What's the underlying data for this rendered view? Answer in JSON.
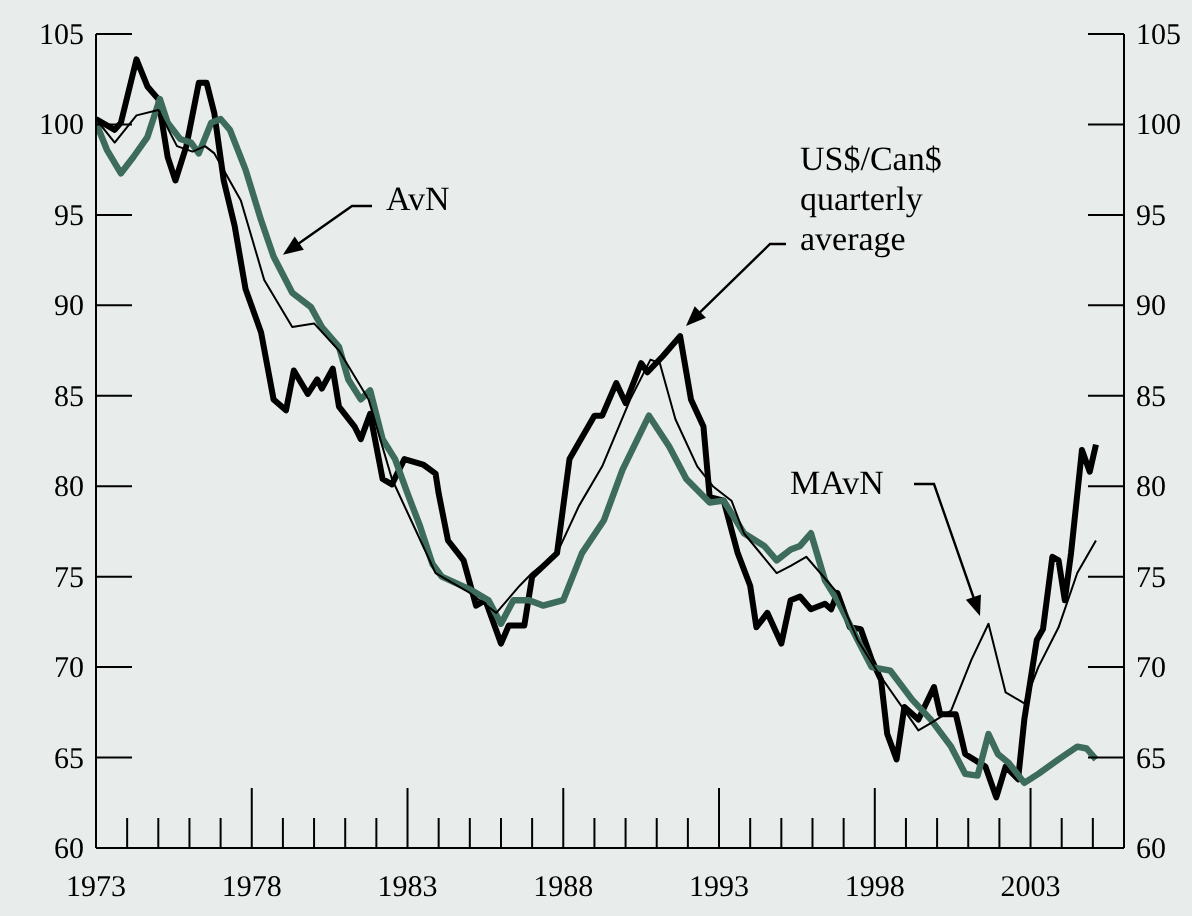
{
  "chart_data": {
    "type": "line",
    "xlim": [
      1973,
      2006
    ],
    "xticks": [
      {
        "value": 1973,
        "label": "1973"
      },
      {
        "value": 1974,
        "label": null
      },
      {
        "value": 1975,
        "label": null
      },
      {
        "value": 1976,
        "label": null
      },
      {
        "value": 1977,
        "label": null
      },
      {
        "value": 1978,
        "label": "1978"
      },
      {
        "value": 1979,
        "label": null
      },
      {
        "value": 1980,
        "label": null
      },
      {
        "value": 1981,
        "label": null
      },
      {
        "value": 1982,
        "label": null
      },
      {
        "value": 1983,
        "label": "1983"
      },
      {
        "value": 1984,
        "label": null
      },
      {
        "value": 1985,
        "label": null
      },
      {
        "value": 1986,
        "label": null
      },
      {
        "value": 1987,
        "label": null
      },
      {
        "value": 1988,
        "label": "1988"
      },
      {
        "value": 1989,
        "label": null
      },
      {
        "value": 1990,
        "label": null
      },
      {
        "value": 1991,
        "label": null
      },
      {
        "value": 1992,
        "label": null
      },
      {
        "value": 1993,
        "label": "1993"
      },
      {
        "value": 1994,
        "label": null
      },
      {
        "value": 1995,
        "label": null
      },
      {
        "value": 1996,
        "label": null
      },
      {
        "value": 1997,
        "label": null
      },
      {
        "value": 1998,
        "label": "1998"
      },
      {
        "value": 1999,
        "label": null
      },
      {
        "value": 2000,
        "label": null
      },
      {
        "value": 2001,
        "label": null
      },
      {
        "value": 2002,
        "label": null
      },
      {
        "value": 2003,
        "label": "2003"
      },
      {
        "value": 2004,
        "label": null
      },
      {
        "value": 2005,
        "label": null
      }
    ],
    "ylim": [
      60,
      105
    ],
    "yticks": [
      60,
      65,
      70,
      75,
      80,
      85,
      90,
      95,
      100,
      105
    ],
    "y2lim": [
      60,
      105
    ],
    "y2ticks": [
      60,
      65,
      70,
      75,
      80,
      85,
      90,
      95,
      100,
      105
    ],
    "annotations": [
      "US$/Can$ quarterly average",
      {
        "text": "AvN",
        "x": 1979.0,
        "y": 92.8
      },
      "MAvN"
    ],
    "series": [
      {
        "color": "#000000",
        "x": [
          1973.0,
          1973.6,
          1973.8,
          1974.3,
          1974.65,
          1975.0,
          1975.3,
          1975.55,
          1975.9,
          1976.3,
          1976.55,
          1976.8,
          1977.1,
          1977.45,
          1977.8,
          1978.3,
          1978.7,
          1979.1,
          1979.35,
          1979.8,
          1980.1,
          1980.25,
          1980.6,
          1980.8,
          1981.3,
          1981.5,
          1981.8,
          1982.2,
          1982.5,
          1982.9,
          1983.5,
          1983.9,
          1984.0,
          1984.3,
          1984.8,
          1985.2,
          1985.5,
          1986.0,
          1986.25,
          1986.75,
          1987.0,
          1987.8,
          1988.2,
          1988.5,
          1989.0,
          1989.25,
          1989.7,
          1990.0,
          1990.5,
          1990.7,
          1991.2,
          1991.75,
          1992.1,
          1992.5,
          1992.7,
          1993.15,
          1993.6,
          1994.0,
          1994.2,
          1994.55,
          1995.0,
          1995.3,
          1995.6,
          1995.95,
          1996.4,
          1996.6,
          1996.8,
          1997.2,
          1997.55,
          1997.9,
          1998.2,
          1998.4,
          1998.7,
          1998.95,
          1999.4,
          1999.9,
          2000.1,
          2000.6,
          2000.9,
          2001.55,
          2001.9,
          2002.2,
          2002.6,
          2002.8,
          2003.2,
          2003.4,
          2003.7,
          2003.9,
          2004.1,
          2004.3,
          2004.65,
          2004.9,
          2005.1
        ],
        "values": [
          100.3,
          99.7,
          100.1,
          103.6,
          102.1,
          101.4,
          98.2,
          96.9,
          98.8,
          102.3,
          102.3,
          100.6,
          96.9,
          94.4,
          90.9,
          88.5,
          84.8,
          84.2,
          86.4,
          85.1,
          85.9,
          85.4,
          86.5,
          84.4,
          83.3,
          82.6,
          84.0,
          80.4,
          80.1,
          81.5,
          81.2,
          80.7,
          79.6,
          77.0,
          75.9,
          73.4,
          73.7,
          71.3,
          72.3,
          72.3,
          75.0,
          76.3,
          81.5,
          82.4,
          83.9,
          83.9,
          85.7,
          84.6,
          86.8,
          86.3,
          87.2,
          88.3,
          84.8,
          83.3,
          79.4,
          79.2,
          76.3,
          74.5,
          72.2,
          73.0,
          71.3,
          73.7,
          73.9,
          73.2,
          73.5,
          73.2,
          74.1,
          72.2,
          72.1,
          70.4,
          69.3,
          66.3,
          64.9,
          67.8,
          67.1,
          68.9,
          67.4,
          67.4,
          65.2,
          64.5,
          62.8,
          64.5,
          63.8,
          67.1,
          71.5,
          72.1,
          76.1,
          75.9,
          73.7,
          76.3,
          82.0,
          80.8,
          82.3
        ]
      },
      {
        "color": "#3d6b5c",
        "x": [
          1973.0,
          1973.35,
          1973.8,
          1974.2,
          1974.65,
          1975.05,
          1975.3,
          1975.7,
          1976.05,
          1976.3,
          1976.7,
          1977.0,
          1977.3,
          1977.8,
          1978.3,
          1978.7,
          1979.3,
          1979.9,
          1980.25,
          1980.8,
          1981.1,
          1981.5,
          1981.8,
          1982.2,
          1982.6,
          1983.0,
          1983.4,
          1983.8,
          1984.1,
          1985.0,
          1985.6,
          1986.0,
          1986.4,
          1986.9,
          1987.35,
          1988.0,
          1988.6,
          1989.3,
          1989.9,
          1990.75,
          1991.4,
          1991.95,
          1992.7,
          1993.15,
          1993.8,
          1994.45,
          1994.85,
          1995.3,
          1995.6,
          1995.95,
          1996.4,
          1996.8,
          1997.45,
          1997.9,
          1998.5,
          1999.2,
          1999.8,
          2000.45,
          2000.9,
          2001.3,
          2001.65,
          2001.95,
          2002.3,
          2002.8,
          2003.25,
          2003.9,
          2004.5,
          2004.8,
          2005.1
        ],
        "values": [
          100.1,
          98.6,
          97.3,
          98.2,
          99.3,
          101.4,
          100.1,
          99.2,
          99.0,
          98.4,
          100.1,
          100.3,
          99.7,
          97.5,
          94.7,
          92.7,
          90.7,
          89.9,
          88.8,
          87.7,
          85.9,
          84.8,
          85.3,
          82.6,
          81.5,
          79.6,
          77.8,
          75.7,
          75.0,
          74.3,
          73.7,
          72.4,
          73.7,
          73.7,
          73.4,
          73.7,
          76.3,
          78.1,
          80.9,
          83.9,
          82.2,
          80.4,
          79.1,
          79.2,
          77.4,
          76.7,
          75.9,
          76.5,
          76.7,
          77.4,
          74.8,
          73.7,
          71.5,
          70.0,
          69.8,
          68.2,
          67.1,
          65.6,
          64.1,
          64.0,
          66.3,
          65.2,
          64.7,
          63.6,
          64.1,
          64.9,
          65.6,
          65.5,
          64.9
        ]
      },
      {
        "color": "#000000",
        "x": [
          1973.0,
          1973.6,
          1974.3,
          1975.0,
          1975.6,
          1976.1,
          1976.5,
          1976.8,
          1977.65,
          1978.4,
          1979.3,
          1980.0,
          1980.8,
          1981.75,
          1982.5,
          1983.2,
          1983.9,
          1985.0,
          1985.85,
          1986.6,
          1987.0,
          1987.8,
          1988.5,
          1989.25,
          1990.15,
          1990.8,
          1991.1,
          1991.6,
          1992.3,
          1992.8,
          1993.4,
          1993.8,
          1994.85,
          1995.3,
          1995.8,
          1996.8,
          1997.45,
          1998.1,
          1999.4,
          1999.8,
          2000.45,
          2001.1,
          2001.65,
          2002.2,
          2002.8,
          2003.25,
          2003.9,
          2004.5,
          2005.1
        ],
        "values": [
          100.3,
          99.0,
          100.5,
          100.8,
          98.8,
          98.5,
          98.8,
          98.4,
          95.8,
          91.4,
          88.8,
          89.0,
          87.5,
          84.8,
          80.4,
          77.8,
          75.2,
          74.1,
          73.0,
          74.5,
          75.2,
          76.3,
          78.9,
          81.1,
          84.8,
          87.0,
          86.8,
          83.7,
          81.1,
          80.0,
          79.2,
          77.4,
          75.2,
          75.6,
          76.1,
          74.1,
          71.5,
          69.7,
          66.5,
          66.9,
          67.6,
          70.4,
          72.4,
          68.6,
          68.0,
          70.0,
          72.2,
          75.2,
          77.0
        ]
      }
    ]
  }
}
